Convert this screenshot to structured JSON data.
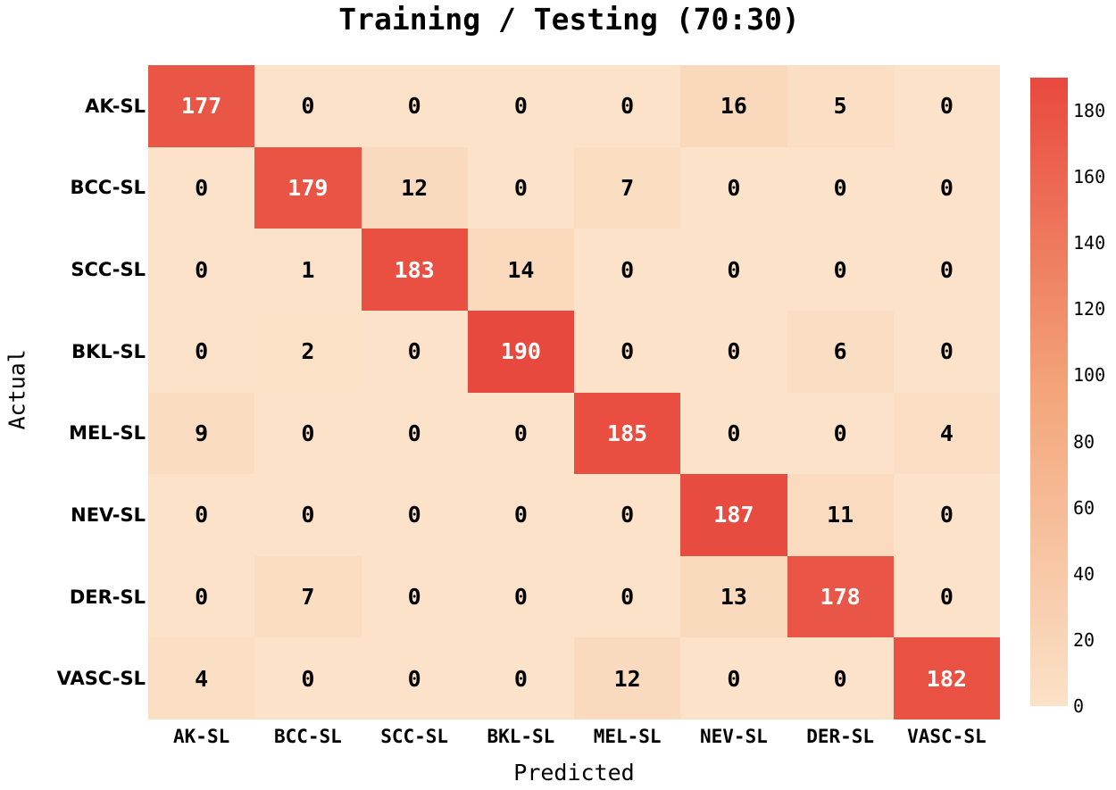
{
  "chart_data": {
    "type": "heatmap",
    "title": "Training / Testing (70:30)",
    "xlabel": "Predicted",
    "ylabel": "Actual",
    "x_categories": [
      "AK-SL",
      "BCC-SL",
      "SCC-SL",
      "BKL-SL",
      "MEL-SL",
      "NEV-SL",
      "DER-SL",
      "VASC-SL"
    ],
    "y_categories": [
      "AK-SL",
      "BCC-SL",
      "SCC-SL",
      "BKL-SL",
      "MEL-SL",
      "NEV-SL",
      "DER-SL",
      "VASC-SL"
    ],
    "matrix": [
      [
        177,
        0,
        0,
        0,
        0,
        16,
        5,
        0
      ],
      [
        0,
        179,
        12,
        0,
        7,
        0,
        0,
        0
      ],
      [
        0,
        1,
        183,
        14,
        0,
        0,
        0,
        0
      ],
      [
        0,
        2,
        0,
        190,
        0,
        0,
        6,
        0
      ],
      [
        9,
        0,
        0,
        0,
        185,
        0,
        0,
        4
      ],
      [
        0,
        0,
        0,
        0,
        0,
        187,
        11,
        0
      ],
      [
        0,
        7,
        0,
        0,
        0,
        13,
        178,
        0
      ],
      [
        4,
        0,
        0,
        0,
        12,
        0,
        0,
        182
      ]
    ],
    "colorbar": {
      "min": 0,
      "max": 190,
      "ticks": [
        0,
        20,
        40,
        60,
        80,
        100,
        120,
        140,
        160,
        180
      ],
      "color_low": "#fbe2c8",
      "color_mid": "#f3a57a",
      "color_high": "#e8493e"
    },
    "annotation_colors": {
      "dark_text": "#000000",
      "light_text": "#ffffff"
    },
    "grid": false,
    "legend_position": "right colorbar"
  }
}
